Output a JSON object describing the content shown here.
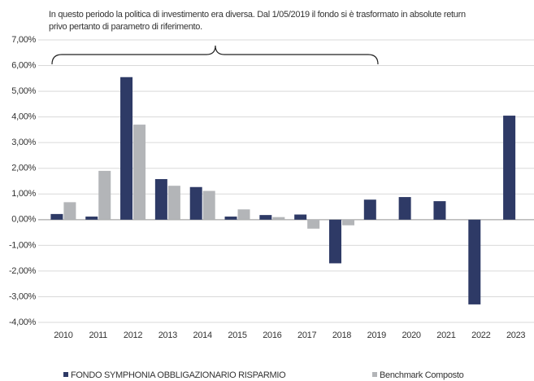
{
  "chart_data": {
    "type": "bar",
    "annotation": [
      "In questo periodo la politica di investimento era diversa. Dal 1/05/2019 il fondo si è trasformato in absolute return",
      "privo pertanto di parametro di riferimento."
    ],
    "categories": [
      "2010",
      "2011",
      "2012",
      "2013",
      "2014",
      "2015",
      "2016",
      "2017",
      "2018",
      "2019",
      "2020",
      "2021",
      "2022",
      "2023"
    ],
    "series": [
      {
        "name": "FONDO SYMPHONIA OBBLIGAZIONARIO RISPARMIO",
        "color": "#2e3a66",
        "values": [
          0.22,
          0.12,
          5.55,
          1.58,
          1.27,
          0.12,
          0.18,
          0.2,
          -1.7,
          0.78,
          0.88,
          0.72,
          -3.3,
          4.05
        ]
      },
      {
        "name": "Benchmark Composto",
        "color": "#b3b5b8",
        "values": [
          0.68,
          1.9,
          3.7,
          1.32,
          1.12,
          0.4,
          0.1,
          -0.35,
          -0.22,
          null,
          null,
          null,
          null,
          null
        ]
      }
    ],
    "ylim": [
      -4,
      7
    ],
    "yticks": [
      {
        "value": -4,
        "label": "-4,00%"
      },
      {
        "value": -3,
        "label": "-3,00%"
      },
      {
        "value": -2,
        "label": "-2,00%"
      },
      {
        "value": -1,
        "label": "-1,00%"
      },
      {
        "value": 0,
        "label": "0,00%"
      },
      {
        "value": 1,
        "label": "1,00%"
      },
      {
        "value": 2,
        "label": "2,00%"
      },
      {
        "value": 3,
        "label": "3,00%"
      },
      {
        "value": 4,
        "label": "4,00%"
      },
      {
        "value": 5,
        "label": "5,00%"
      },
      {
        "value": 6,
        "label": "6,00%"
      },
      {
        "value": 7,
        "label": "7,00%"
      }
    ],
    "grid": true
  }
}
